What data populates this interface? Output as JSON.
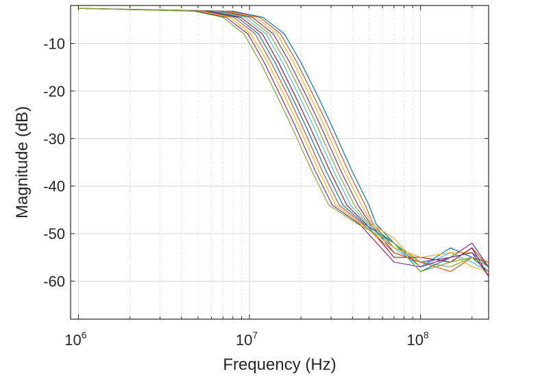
{
  "chart_data": {
    "type": "line",
    "xlabel": "Frequency (Hz)",
    "ylabel": "Magnitude (dB)",
    "xscale": "log",
    "xlim": [
      900000,
      250000000
    ],
    "ylim": [
      -68,
      -2
    ],
    "x_ticks": [
      {
        "value": 1000000,
        "base": "10",
        "exp": "6"
      },
      {
        "value": 10000000,
        "base": "10",
        "exp": "7"
      },
      {
        "value": 100000000,
        "base": "10",
        "exp": "8"
      }
    ],
    "y_ticks": [
      {
        "value": -10,
        "label": "-10"
      },
      {
        "value": -20,
        "label": "-20"
      },
      {
        "value": -30,
        "label": "-30"
      },
      {
        "value": -40,
        "label": "-40"
      },
      {
        "value": -50,
        "label": "-50"
      },
      {
        "value": -60,
        "label": "-60"
      }
    ],
    "grid": {
      "major_y": true,
      "major_x": true,
      "minor_x": true
    },
    "colors": [
      "#0072BD",
      "#D95319",
      "#EDB120",
      "#7E2F8E",
      "#77AC30",
      "#4DBEEE",
      "#A2142F"
    ],
    "series_count": 12,
    "series": [
      {
        "values": [
          [
            1000000,
            -2.6
          ],
          [
            8000000,
            -3.2
          ],
          [
            12000000,
            -4.5
          ],
          [
            16000000,
            -8
          ],
          [
            20000000,
            -14
          ],
          [
            25000000,
            -21
          ],
          [
            30000000,
            -27
          ],
          [
            40000000,
            -37
          ],
          [
            50000000,
            -44
          ],
          [
            55000000,
            -48
          ],
          [
            70000000,
            -52
          ],
          [
            100000000,
            -57
          ],
          [
            150000000,
            -53
          ],
          [
            200000000,
            -55
          ],
          [
            250000000,
            -58
          ]
        ]
      },
      {
        "values": [
          [
            1000000,
            -2.6
          ],
          [
            7600000,
            -3.2
          ],
          [
            11500000,
            -4.5
          ],
          [
            15200000,
            -8
          ],
          [
            19000000,
            -14
          ],
          [
            23700000,
            -21
          ],
          [
            28500000,
            -27
          ],
          [
            38000000,
            -37
          ],
          [
            47500000,
            -44
          ],
          [
            53000000,
            -48
          ],
          [
            70000000,
            -53
          ],
          [
            100000000,
            -55
          ],
          [
            150000000,
            -56
          ],
          [
            200000000,
            -53
          ],
          [
            250000000,
            -57
          ]
        ]
      },
      {
        "values": [
          [
            1000000,
            -2.6
          ],
          [
            7200000,
            -3.2
          ],
          [
            10900000,
            -4.5
          ],
          [
            14500000,
            -8
          ],
          [
            18100000,
            -14
          ],
          [
            22600000,
            -21
          ],
          [
            27100000,
            -27
          ],
          [
            36100000,
            -37
          ],
          [
            45200000,
            -44
          ],
          [
            52000000,
            -48
          ],
          [
            70000000,
            -51
          ],
          [
            100000000,
            -57
          ],
          [
            150000000,
            -54
          ],
          [
            200000000,
            -54
          ],
          [
            250000000,
            -59
          ]
        ]
      },
      {
        "values": [
          [
            1000000,
            -2.6
          ],
          [
            6900000,
            -3.2
          ],
          [
            10400000,
            -4.5
          ],
          [
            13800000,
            -8
          ],
          [
            17200000,
            -14
          ],
          [
            21500000,
            -21
          ],
          [
            25800000,
            -27
          ],
          [
            34400000,
            -37
          ],
          [
            43100000,
            -44
          ],
          [
            51000000,
            -48
          ],
          [
            70000000,
            -54
          ],
          [
            100000000,
            -56
          ],
          [
            150000000,
            -55
          ],
          [
            200000000,
            -52
          ],
          [
            250000000,
            -57
          ]
        ]
      },
      {
        "values": [
          [
            1000000,
            -2.6
          ],
          [
            6500000,
            -3.2
          ],
          [
            9900000,
            -4.5
          ],
          [
            13100000,
            -8
          ],
          [
            16400000,
            -14
          ],
          [
            20500000,
            -21
          ],
          [
            24600000,
            -27
          ],
          [
            32800000,
            -37
          ],
          [
            41000000,
            -44
          ],
          [
            50000000,
            -48
          ],
          [
            70000000,
            -52
          ],
          [
            100000000,
            -56
          ],
          [
            150000000,
            -57
          ],
          [
            200000000,
            -55
          ],
          [
            250000000,
            -56
          ]
        ]
      },
      {
        "values": [
          [
            1000000,
            -2.6
          ],
          [
            6200000,
            -3.2
          ],
          [
            9400000,
            -4.5
          ],
          [
            12500000,
            -8
          ],
          [
            15600000,
            -14
          ],
          [
            19500000,
            -21
          ],
          [
            23400000,
            -27
          ],
          [
            31200000,
            -37
          ],
          [
            39000000,
            -44
          ],
          [
            49000000,
            -48
          ],
          [
            70000000,
            -53
          ],
          [
            100000000,
            -57
          ],
          [
            150000000,
            -54
          ],
          [
            200000000,
            -56
          ],
          [
            250000000,
            -58
          ]
        ]
      },
      {
        "values": [
          [
            1000000,
            -2.6
          ],
          [
            5900000,
            -3.2
          ],
          [
            8900000,
            -4.5
          ],
          [
            11900000,
            -8
          ],
          [
            14800000,
            -14
          ],
          [
            18500000,
            -21
          ],
          [
            22200000,
            -27
          ],
          [
            29700000,
            -37
          ],
          [
            37100000,
            -44
          ],
          [
            48000000,
            -48
          ],
          [
            70000000,
            -55
          ],
          [
            100000000,
            -55
          ],
          [
            150000000,
            -56
          ],
          [
            200000000,
            -53
          ],
          [
            250000000,
            -59
          ]
        ]
      },
      {
        "values": [
          [
            1000000,
            -2.6
          ],
          [
            5600000,
            -3.2
          ],
          [
            8500000,
            -4.5
          ],
          [
            11300000,
            -8
          ],
          [
            14100000,
            -14
          ],
          [
            17600000,
            -21
          ],
          [
            21100000,
            -27
          ],
          [
            28200000,
            -37
          ],
          [
            35200000,
            -44
          ],
          [
            47000000,
            -48
          ],
          [
            70000000,
            -52
          ],
          [
            100000000,
            -58
          ],
          [
            150000000,
            -55
          ],
          [
            200000000,
            -54
          ],
          [
            250000000,
            -57
          ]
        ]
      },
      {
        "values": [
          [
            1000000,
            -2.6
          ],
          [
            5400000,
            -3.2
          ],
          [
            8100000,
            -4.5
          ],
          [
            10800000,
            -8
          ],
          [
            13400000,
            -14
          ],
          [
            16800000,
            -21
          ],
          [
            20100000,
            -27
          ],
          [
            26800000,
            -37
          ],
          [
            33500000,
            -44
          ],
          [
            46000000,
            -48
          ],
          [
            70000000,
            -54
          ],
          [
            100000000,
            -56
          ],
          [
            150000000,
            -58
          ],
          [
            200000000,
            -55
          ],
          [
            250000000,
            -56
          ]
        ]
      },
      {
        "values": [
          [
            1000000,
            -2.6
          ],
          [
            5100000,
            -3.2
          ],
          [
            7700000,
            -4.5
          ],
          [
            10200000,
            -8
          ],
          [
            12800000,
            -14
          ],
          [
            16000000,
            -21
          ],
          [
            19200000,
            -27
          ],
          [
            25600000,
            -37
          ],
          [
            32000000,
            -44
          ],
          [
            45000000,
            -48
          ],
          [
            70000000,
            -53
          ],
          [
            100000000,
            -55
          ],
          [
            150000000,
            -54
          ],
          [
            200000000,
            -57
          ],
          [
            250000000,
            -58
          ]
        ]
      },
      {
        "values": [
          [
            1000000,
            -2.6
          ],
          [
            4900000,
            -3.2
          ],
          [
            7300000,
            -4.5
          ],
          [
            9800000,
            -8
          ],
          [
            12200000,
            -14
          ],
          [
            15200000,
            -21
          ],
          [
            18300000,
            -27
          ],
          [
            24400000,
            -37
          ],
          [
            30500000,
            -44
          ],
          [
            44000000,
            -48
          ],
          [
            70000000,
            -56
          ],
          [
            100000000,
            -57
          ],
          [
            150000000,
            -55
          ],
          [
            200000000,
            -54
          ],
          [
            250000000,
            -59
          ]
        ]
      },
      {
        "values": [
          [
            1000000,
            -2.6
          ],
          [
            4700000,
            -3.2
          ],
          [
            7000000,
            -4.5
          ],
          [
            9300000,
            -8
          ],
          [
            11600000,
            -14
          ],
          [
            14500000,
            -21
          ],
          [
            17400000,
            -27
          ],
          [
            23300000,
            -37
          ],
          [
            29100000,
            -44
          ],
          [
            43000000,
            -48
          ],
          [
            70000000,
            -52
          ],
          [
            100000000,
            -58
          ],
          [
            150000000,
            -56
          ],
          [
            200000000,
            -55
          ],
          [
            250000000,
            -57
          ]
        ]
      }
    ]
  }
}
